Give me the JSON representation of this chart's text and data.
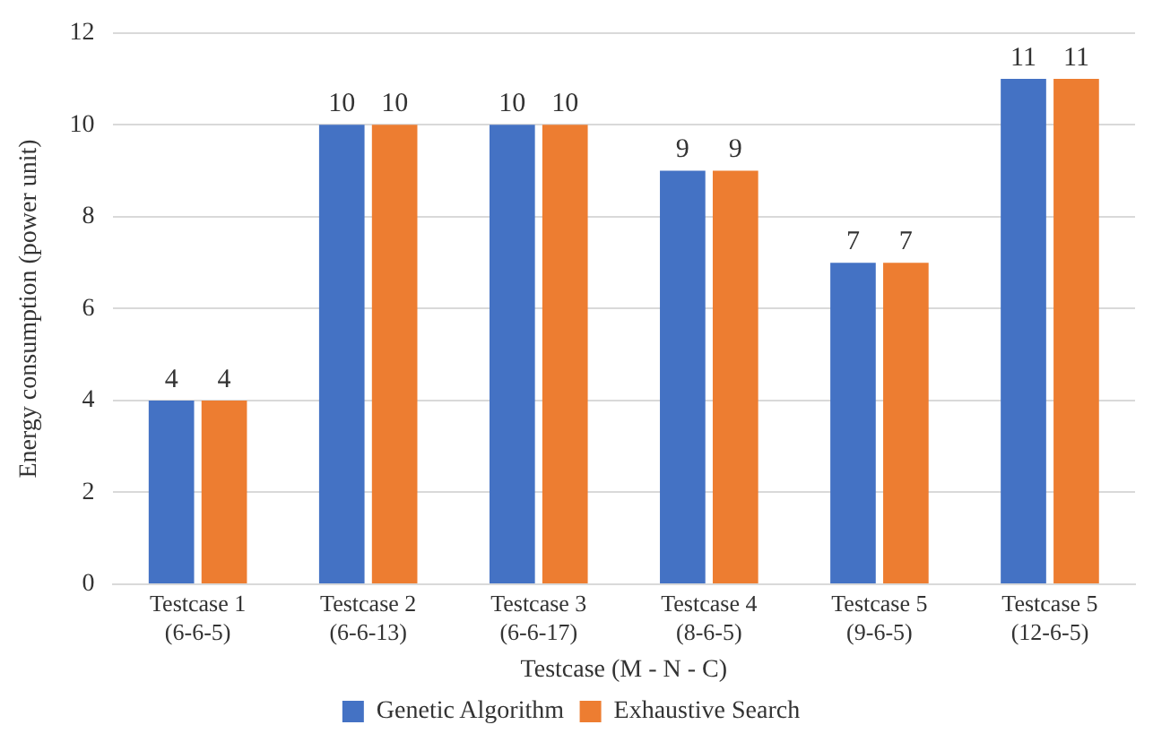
{
  "chart_data": {
    "type": "bar",
    "xlabel": "Testcase (M - N - C)",
    "ylabel": "Energy consumption (power unit)",
    "categories": [
      "Testcase 1\n(6-6-5)",
      "Testcase 2\n(6-6-13)",
      "Testcase 3\n(6-6-17)",
      "Testcase 4\n(8-6-5)",
      "Testcase 5\n(9-6-5)",
      "Testcase 5\n(12-6-5)"
    ],
    "series": [
      {
        "name": "Genetic Algorithm",
        "color": "#4472c4",
        "values": [
          4,
          10,
          10,
          9,
          7,
          11
        ]
      },
      {
        "name": "Exhaustive Search",
        "color": "#ed7d31",
        "values": [
          4,
          10,
          10,
          9,
          7,
          11
        ]
      }
    ],
    "ylim": [
      0,
      12
    ],
    "yticks": [
      0,
      2,
      4,
      6,
      8,
      10,
      12
    ],
    "grid": "y",
    "legend": "bottom",
    "data_labels": true
  }
}
